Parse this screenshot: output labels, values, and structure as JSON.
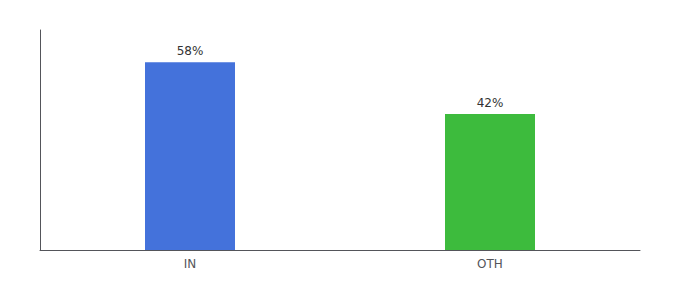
{
  "chart_data": {
    "type": "bar",
    "categories": [
      "IN",
      "OTH"
    ],
    "values": [
      58,
      42
    ],
    "value_labels": [
      "58%",
      "42%"
    ],
    "colors": [
      "#4472db",
      "#3dbb3d"
    ],
    "ylim": [
      0,
      68
    ],
    "grid": false,
    "data_labels": true,
    "tick_labels": "x"
  }
}
